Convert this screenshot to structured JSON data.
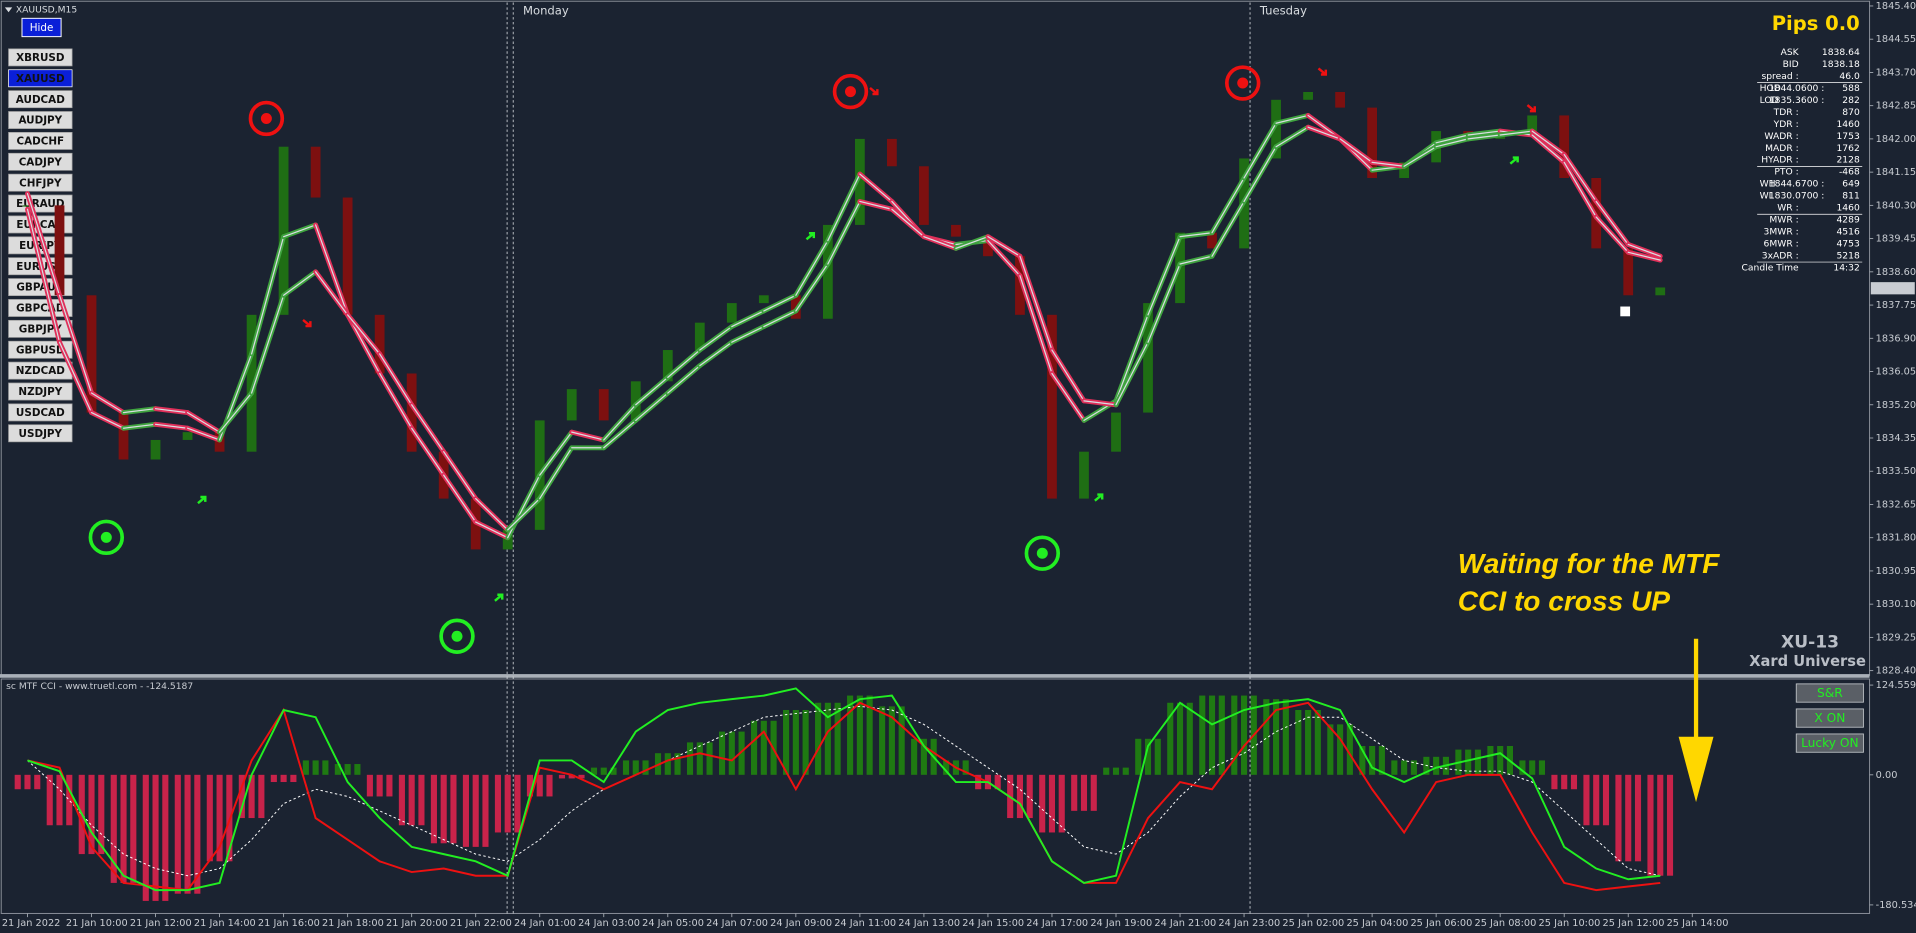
{
  "window_title": "XAUUSD,M15",
  "hide_button": "Hide",
  "symbols": [
    "XBRUSD",
    "XAUUSD",
    "AUDCAD",
    "AUDJPY",
    "CADCHF",
    "CADJPY",
    "CHFJPY",
    "EURAUD",
    "EURCAD",
    "EURJPY",
    "EURUSD",
    "GBPAUD",
    "GBPCAD",
    "GBPJPY",
    "GBPUSD",
    "NZDCAD",
    "NZDJPY",
    "USDCAD",
    "USDJPY"
  ],
  "active_symbol": 1,
  "session_labels": [
    "Monday",
    "Tuesday"
  ],
  "info_panel": {
    "pips": "Pips 0.0",
    "rows": [
      {
        "label": "ASK",
        "value": "1838.64",
        "color": "#8a8f99"
      },
      {
        "label": "BID",
        "value": "1838.18",
        "color": "#3c4350"
      },
      {
        "label": "spread :",
        "value": "46.0",
        "color": "#7cfc00"
      },
      {
        "label": "HOD",
        "level": "1844.0600 :",
        "value": "588"
      },
      {
        "label": "LOD",
        "level": "1835.3600 :",
        "value": "282"
      },
      {
        "label": "TDR :",
        "value": "870"
      },
      {
        "label": "YDR :",
        "value": "1460"
      },
      {
        "label": "WADR :",
        "value": "1753"
      },
      {
        "label": "MADR :",
        "value": "1762"
      },
      {
        "label": "HYADR :",
        "value": "2128"
      },
      {
        "label": "PTO :",
        "value": "-468"
      },
      {
        "label": "WH",
        "level": "1844.6700 :",
        "value": "649"
      },
      {
        "label": "WL",
        "level": "1830.0700 :",
        "value": "811"
      },
      {
        "label": "WR :",
        "value": "1460"
      },
      {
        "label": "MWR :",
        "value": "4289"
      },
      {
        "label": "3MWR :",
        "value": "4516"
      },
      {
        "label": "6MWR :",
        "value": "4753"
      },
      {
        "label": "3xADR :",
        "value": "5218",
        "color": "#ffd700"
      },
      {
        "label": "Candle Time",
        "value": "14:32",
        "color": "#ffd700"
      }
    ]
  },
  "annotation": [
    "Waiting for the MTF",
    "CCI to cross UP"
  ],
  "brand": [
    "XU-13",
    "Xard Universe"
  ],
  "indicator_buttons": [
    "S&R",
    "X ON",
    "Lucky ON"
  ],
  "chart_data": [
    {
      "type": "candles",
      "up_color": "#1f6e14",
      "down_color": "#7d1010",
      "values": [
        1840.3,
        1838.0,
        1835.0,
        1833.8,
        1834.3,
        1834.5,
        1834.0,
        1837.5,
        1841.8,
        1840.5,
        1837.5,
        1836.0,
        1834.0,
        1832.8,
        1831.5,
        1832.0,
        1834.8,
        1835.6,
        1834.8,
        1835.8,
        1836.6,
        1837.3,
        1837.8,
        1838.0,
        1837.4,
        1839.8,
        1842.0,
        1841.3,
        1839.8,
        1839.5,
        1839.0,
        1837.5,
        1832.8,
        1834.0,
        1835.0,
        1837.8,
        1839.6,
        1839.2,
        1841.5,
        1843.0,
        1843.2,
        1842.8,
        1841.0,
        1841.4,
        1842.2,
        1842.0,
        1842.2,
        1842.6,
        1841.0,
        1839.2,
        1838.0,
        1838.2,
        null
      ],
      "bands": [
        {
          "values": [
            1840.2,
            1836.8,
            1835.0,
            1834.6,
            1834.7,
            1834.6,
            1834.3,
            1836.5,
            1839.5,
            1839.8,
            1837.5,
            1836.0,
            1834.6,
            1833.4,
            1832.2,
            1831.8,
            1833.4,
            1834.5,
            1834.3,
            1835.2,
            1835.9,
            1836.6,
            1837.2,
            1837.6,
            1838.0,
            1839.4,
            1841.1,
            1840.4,
            1839.5,
            1839.3,
            1839.4,
            1838.5,
            1836.0,
            1834.8,
            1835.3,
            1837.5,
            1839.5,
            1839.6,
            1841.0,
            1842.4,
            1842.6,
            1842.0,
            1841.2,
            1841.3,
            1841.9,
            1842.1,
            1842.2,
            1842.1,
            1841.4,
            1840.0,
            1839.1,
            1838.9,
            null
          ]
        },
        {
          "values": [
            1840.6,
            1838.0,
            1835.5,
            1835.0,
            1835.1,
            1835.0,
            1834.5,
            1835.5,
            1838.0,
            1838.6,
            1837.5,
            1836.5,
            1835.2,
            1834.0,
            1832.8,
            1832.0,
            1832.8,
            1834.1,
            1834.1,
            1834.8,
            1835.5,
            1836.2,
            1836.8,
            1837.2,
            1837.6,
            1838.8,
            1840.4,
            1840.2,
            1839.5,
            1839.2,
            1839.5,
            1839.0,
            1836.6,
            1835.3,
            1835.2,
            1836.8,
            1838.8,
            1839.0,
            1840.4,
            1841.8,
            1842.3,
            1842.0,
            1841.4,
            1841.3,
            1841.8,
            1842.0,
            1842.1,
            1842.2,
            1841.6,
            1840.4,
            1839.3,
            1839.0,
            null
          ]
        }
      ],
      "band_up_color": "#3fa33f",
      "band_down_color": "#e0305a",
      "current_price": 1838.18,
      "ylim": [
        1828.28,
        1845.49
      ],
      "yticks": [
        {
          "value": 1845.4,
          "label": "1845.40"
        },
        1844.55,
        {
          "value": 1843.7,
          "label": "1843.70"
        },
        1842.85,
        {
          "value": 1842,
          "label": "1842.00"
        },
        1841.15,
        {
          "value": 1840.3,
          "label": "1840.30"
        },
        1839.45,
        {
          "value": 1838.6,
          "label": "1838.60"
        },
        1837.75,
        {
          "value": 1836.9,
          "label": "1836.90"
        },
        1836.05,
        {
          "value": 1835.2,
          "label": "1835.20"
        },
        1834.35,
        {
          "value": 1833.5,
          "label": "1833.50"
        },
        1832.65,
        {
          "value": 1831.8,
          "label": "1831.80"
        },
        1830.95,
        {
          "value": 1830.1,
          "label": "1830.10"
        },
        1829.25,
        {
          "value": 1828.4,
          "label": "1828.40"
        }
      ]
    },
    {
      "type": "indicator",
      "title": "sc MTF CCI - www.truetl.com - -124.5187",
      "categories": [
        "21 Jan 2022",
        null,
        "21 Jan 10:00",
        null,
        "21 Jan 12:00",
        null,
        "21 Jan 14:00",
        null,
        "21 Jan 16:00",
        null,
        "21 Jan 18:00",
        null,
        "21 Jan 20:00",
        null,
        "21 Jan 22:00",
        null,
        "24 Jan 01:00",
        null,
        "24 Jan 03:00",
        null,
        "24 Jan 05:00",
        null,
        "24 Jan 07:00",
        null,
        "24 Jan 09:00",
        null,
        "24 Jan 11:00",
        null,
        "24 Jan 13:00",
        null,
        "24 Jan 15:00",
        null,
        "24 Jan 17:00",
        null,
        "24 Jan 19:00",
        null,
        "24 Jan 21:00",
        null,
        "24 Jan 23:00",
        null,
        "25 Jan 02:00",
        null,
        "25 Jan 04:00",
        null,
        "25 Jan 06:00",
        null,
        "25 Jan 08:00",
        null,
        "25 Jan 10:00",
        null,
        "25 Jan 12:00",
        null,
        "25 Jan 14:00"
      ],
      "histogram": {
        "up_color": "#1f7a12",
        "down_color": "#c8234a",
        "values": [
          -20,
          -70,
          -110,
          -150,
          -175,
          -165,
          -120,
          -60,
          -10,
          20,
          15,
          -30,
          -70,
          -95,
          -100,
          -80,
          -30,
          -5,
          10,
          20,
          30,
          45,
          60,
          75,
          90,
          100,
          110,
          95,
          50,
          20,
          -20,
          -60,
          -80,
          -50,
          10,
          50,
          100,
          110,
          110,
          105,
          90,
          70,
          40,
          20,
          25,
          35,
          40,
          20,
          -20,
          -70,
          -120,
          -140,
          null
        ]
      },
      "series": [
        {
          "color": "#ffffff",
          "dashed": true,
          "values": [
            20,
            -20,
            -70,
            -110,
            -130,
            -140,
            -130,
            -90,
            -40,
            -20,
            -30,
            -50,
            -70,
            -90,
            -110,
            -120,
            -90,
            -50,
            -20,
            0,
            20,
            40,
            60,
            80,
            85,
            90,
            95,
            90,
            70,
            40,
            10,
            -20,
            -60,
            -100,
            -110,
            -80,
            -30,
            10,
            30,
            60,
            80,
            80,
            50,
            20,
            10,
            5,
            5,
            -10,
            -50,
            -90,
            -130,
            -140,
            null
          ]
        },
        {
          "color": "#ee1111",
          "values": [
            20,
            10,
            -100,
            -150,
            -155,
            -160,
            -100,
            20,
            90,
            -60,
            -90,
            -120,
            -135,
            -130,
            -140,
            -140,
            10,
            0,
            -20,
            0,
            20,
            30,
            20,
            60,
            -20,
            60,
            100,
            80,
            40,
            10,
            -10,
            -40,
            -120,
            -150,
            -150,
            -60,
            -10,
            -20,
            40,
            90,
            100,
            50,
            -20,
            -80,
            -10,
            0,
            0,
            -80,
            -150,
            -160,
            -155,
            -150,
            null
          ]
        },
        {
          "color": "#22ee22",
          "values": [
            20,
            5,
            -80,
            -140,
            -160,
            -160,
            -150,
            0,
            90,
            80,
            -10,
            -60,
            -100,
            -110,
            -120,
            -140,
            20,
            20,
            -10,
            60,
            90,
            100,
            105,
            110,
            120,
            80,
            105,
            110,
            40,
            -10,
            -10,
            -40,
            -120,
            -150,
            -140,
            40,
            100,
            70,
            90,
            100,
            105,
            90,
            10,
            -10,
            10,
            20,
            30,
            -5,
            -100,
            -130,
            -145,
            -140,
            null
          ]
        }
      ],
      "ylim": [
        -192.4,
        133
      ],
      "yticks": [
        124.5593,
        {
          "value": 0,
          "label": "0.00"
        },
        -180.5346
      ]
    }
  ]
}
